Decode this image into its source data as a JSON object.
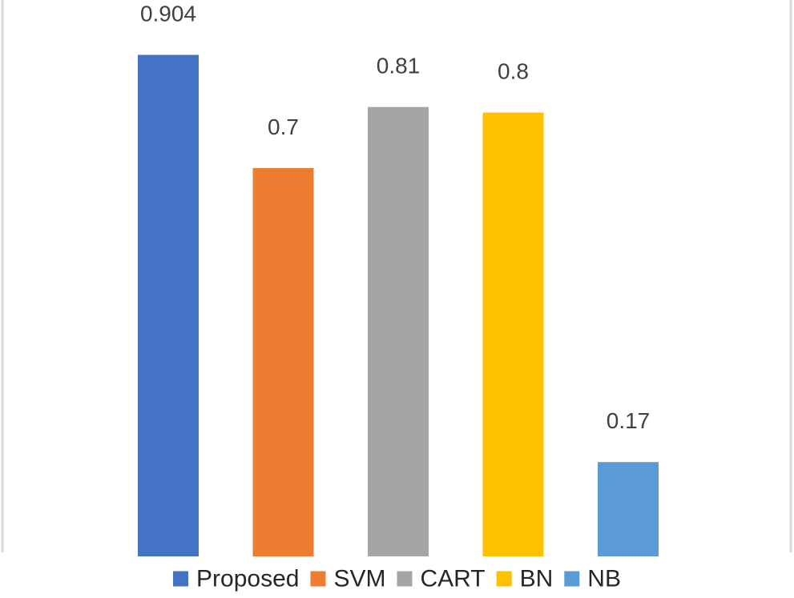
{
  "chart_data": {
    "type": "bar",
    "title": "",
    "xlabel": "",
    "ylabel": "",
    "ylim": [
      0,
      1
    ],
    "categories": [
      "Proposed",
      "SVM",
      "CART",
      "BN",
      "NB"
    ],
    "values": [
      0.904,
      0.7,
      0.81,
      0.8,
      0.17
    ],
    "data_labels": [
      "0.904",
      "0.7",
      "0.81",
      "0.8",
      "0.17"
    ],
    "colors": [
      "#4472c4",
      "#ed7d31",
      "#a5a5a5",
      "#ffc000",
      "#5b9bd5"
    ],
    "legend": {
      "position": "bottom",
      "entries": [
        "Proposed",
        "SVM",
        "CART",
        "BN",
        "NB"
      ]
    },
    "grid": false
  }
}
